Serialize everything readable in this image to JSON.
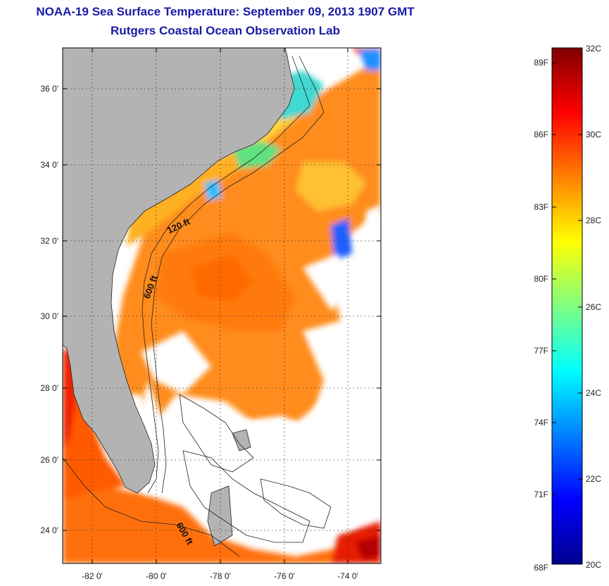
{
  "header": {
    "title": "NOAA-19 Sea Surface Temperature:  September 09, 2013 1907 GMT",
    "subtitle": "Rutgers Coastal Ocean Observation Lab"
  },
  "map": {
    "lat_ticks": [
      "36 0'",
      "34 0'",
      "32 0'",
      "30 0'",
      "28 0'",
      "26 0'",
      "24 0'"
    ],
    "lon_ticks": [
      "-82 0'",
      "-80 0'",
      "-78 0'",
      "-76 0'",
      "-74 0'"
    ],
    "contour_labels": [
      "120 ft",
      "600 ft",
      "600 ft"
    ],
    "land_color": "#b3b3b3",
    "ocean_color": "#ffffff"
  },
  "colorbar": {
    "fahrenheit_labels": [
      "89F",
      "86F",
      "83F",
      "80F",
      "77F",
      "74F",
      "71F",
      "68F"
    ],
    "celsius_labels": [
      "32C",
      "30C",
      "28C",
      "26C",
      "24C",
      "22C",
      "20C"
    ],
    "colors": [
      "#7f0000",
      "#ff0000",
      "#ff8000",
      "#ffff00",
      "#80ff80",
      "#00ffff",
      "#0080ff",
      "#0000ff",
      "#00008f"
    ]
  }
}
